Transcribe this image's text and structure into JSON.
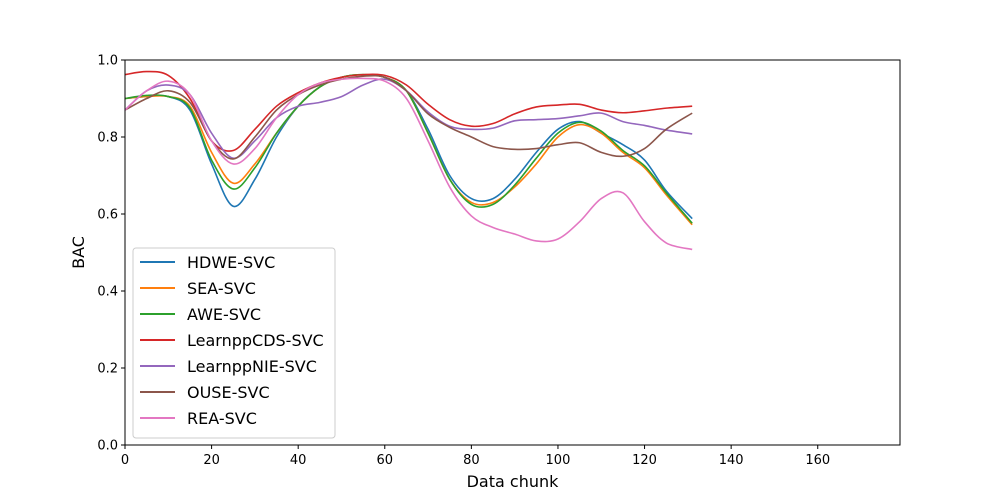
{
  "chart_data": {
    "type": "line",
    "xlabel": "Data chunk",
    "ylabel": "BAC",
    "xlim": [
      0,
      179
    ],
    "ylim": [
      0,
      1.0
    ],
    "xticks": [
      "0",
      "20",
      "40",
      "60",
      "80",
      "100",
      "120",
      "140",
      "160"
    ],
    "yticks": [
      "0.0",
      "0.2",
      "0.4",
      "0.6",
      "0.8",
      "1.0"
    ],
    "grid": false,
    "legend_position": "lower-left",
    "x": [
      0,
      5,
      10,
      15,
      20,
      25,
      30,
      35,
      40,
      45,
      50,
      55,
      60,
      65,
      70,
      75,
      80,
      85,
      90,
      95,
      100,
      105,
      110,
      115,
      120,
      125,
      131
    ],
    "series": [
      {
        "name": "HDWE-SVC",
        "color": "#1f77b4",
        "values": [
          0.9,
          0.905,
          0.905,
          0.87,
          0.73,
          0.62,
          0.69,
          0.8,
          0.88,
          0.93,
          0.955,
          0.962,
          0.955,
          0.92,
          0.82,
          0.7,
          0.64,
          0.64,
          0.69,
          0.76,
          0.82,
          0.84,
          0.81,
          0.78,
          0.74,
          0.66,
          0.588
        ]
      },
      {
        "name": "SEA-SVC",
        "color": "#ff7f0e",
        "values": [
          0.9,
          0.905,
          0.905,
          0.88,
          0.76,
          0.68,
          0.73,
          0.81,
          0.88,
          0.93,
          0.955,
          0.962,
          0.955,
          0.92,
          0.81,
          0.69,
          0.63,
          0.63,
          0.67,
          0.73,
          0.8,
          0.832,
          0.81,
          0.76,
          0.72,
          0.65,
          0.572
        ]
      },
      {
        "name": "AWE-SVC",
        "color": "#2ca02c",
        "values": [
          0.9,
          0.908,
          0.905,
          0.875,
          0.74,
          0.665,
          0.72,
          0.81,
          0.88,
          0.93,
          0.955,
          0.962,
          0.955,
          0.92,
          0.81,
          0.69,
          0.625,
          0.625,
          0.675,
          0.745,
          0.81,
          0.838,
          0.815,
          0.765,
          0.725,
          0.655,
          0.576
        ]
      },
      {
        "name": "LearnppCDS-SVC",
        "color": "#d62728",
        "values": [
          0.962,
          0.97,
          0.96,
          0.9,
          0.79,
          0.765,
          0.82,
          0.88,
          0.915,
          0.94,
          0.955,
          0.962,
          0.96,
          0.935,
          0.885,
          0.845,
          0.828,
          0.835,
          0.86,
          0.878,
          0.883,
          0.885,
          0.87,
          0.863,
          0.868,
          0.875,
          0.88
        ]
      },
      {
        "name": "LearnppNIE-SVC",
        "color": "#9467bd",
        "values": [
          0.87,
          0.92,
          0.935,
          0.91,
          0.81,
          0.745,
          0.79,
          0.85,
          0.88,
          0.89,
          0.905,
          0.935,
          0.95,
          0.92,
          0.865,
          0.828,
          0.82,
          0.823,
          0.842,
          0.845,
          0.848,
          0.855,
          0.862,
          0.84,
          0.83,
          0.818,
          0.808
        ]
      },
      {
        "name": "OUSE-SVC",
        "color": "#8c564b",
        "values": [
          0.87,
          0.9,
          0.92,
          0.89,
          0.79,
          0.743,
          0.8,
          0.87,
          0.91,
          0.935,
          0.95,
          0.958,
          0.955,
          0.92,
          0.86,
          0.825,
          0.8,
          0.775,
          0.768,
          0.77,
          0.78,
          0.785,
          0.76,
          0.75,
          0.77,
          0.82,
          0.862
        ]
      },
      {
        "name": "REA-SVC",
        "color": "#e377c2",
        "values": [
          0.87,
          0.92,
          0.945,
          0.91,
          0.79,
          0.73,
          0.77,
          0.85,
          0.91,
          0.94,
          0.95,
          0.952,
          0.945,
          0.9,
          0.79,
          0.67,
          0.595,
          0.565,
          0.548,
          0.53,
          0.535,
          0.58,
          0.64,
          0.655,
          0.58,
          0.525,
          0.508
        ]
      }
    ]
  }
}
